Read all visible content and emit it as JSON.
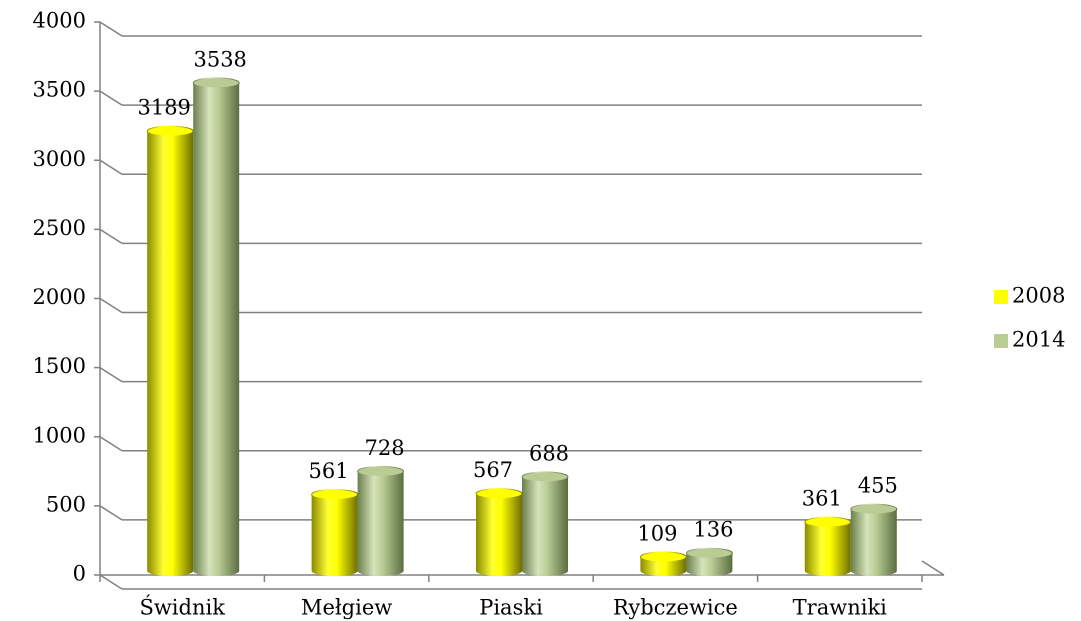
{
  "chart_data": {
    "type": "bar",
    "categories": [
      "Świdnik",
      "Mełgiew",
      "Piaski",
      "Rybczewice",
      "Trawniki"
    ],
    "series": [
      {
        "name": "2008",
        "color": "#ffff00",
        "values": [
          3189,
          561,
          567,
          109,
          361
        ]
      },
      {
        "name": "2014",
        "color": "#b8cc94",
        "values": [
          3538,
          728,
          688,
          136,
          455
        ]
      }
    ],
    "ylim": [
      0,
      4000
    ],
    "yticks": [
      0,
      500,
      1000,
      1500,
      2000,
      2500,
      3000,
      3500,
      4000
    ],
    "grid": true,
    "legend": "right"
  }
}
